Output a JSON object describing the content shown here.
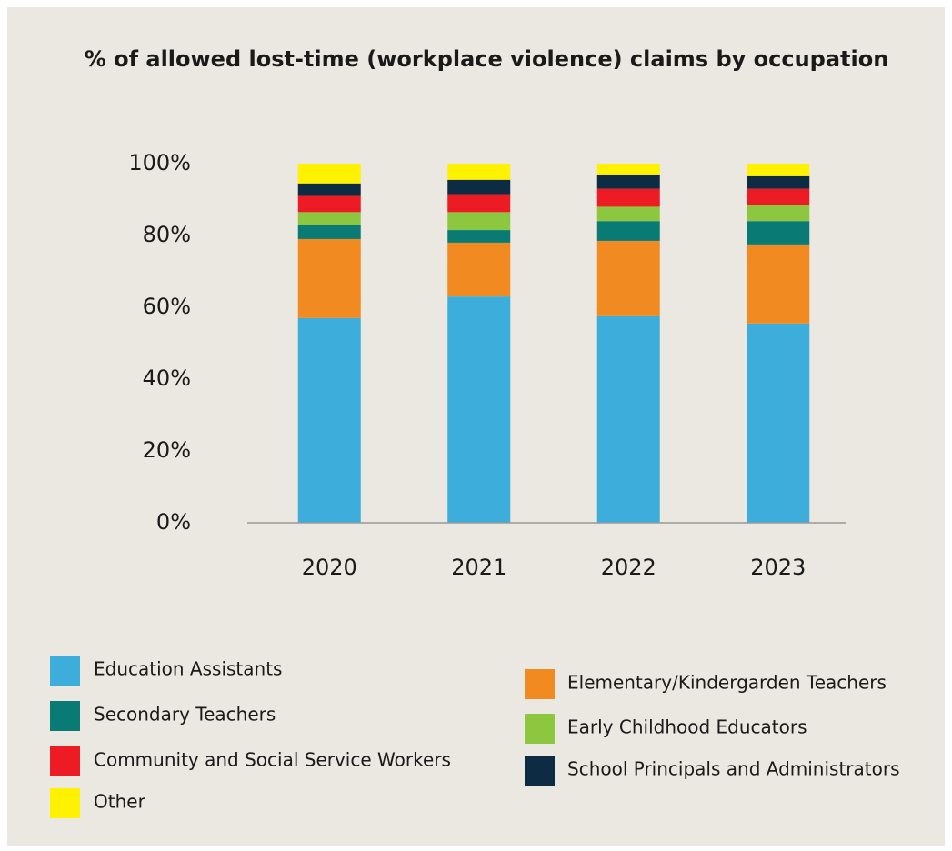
{
  "chart_data": {
    "type": "stacked_bar",
    "title": "% of allowed lost-time (workplace violence) claims by occupation",
    "categories": [
      "2020",
      "2021",
      "2022",
      "2023"
    ],
    "series": [
      {
        "name": "Education Assistants",
        "color": "#3daedb",
        "values": [
          57,
          63,
          57.5,
          55.5
        ]
      },
      {
        "name": "Elementary/Kindergarden Teachers",
        "color": "#f18a21",
        "values": [
          22,
          15,
          21,
          22
        ]
      },
      {
        "name": "Secondary Teachers",
        "color": "#0a7a74",
        "values": [
          4,
          3.5,
          5.5,
          6.5
        ]
      },
      {
        "name": "Early Childhood Educators",
        "color": "#8dc63f",
        "values": [
          3.5,
          5,
          4,
          4.5
        ]
      },
      {
        "name": "Community and Social Service Workers",
        "color": "#ed1c24",
        "values": [
          4.5,
          5,
          5,
          4.5
        ]
      },
      {
        "name": "School Principals and Administrators",
        "color": "#0d2b42",
        "values": [
          3.5,
          4,
          4,
          3.5
        ]
      },
      {
        "name": "Other",
        "color": "#fff200",
        "values": [
          5.5,
          4.5,
          3,
          3.5
        ]
      }
    ],
    "ylim": [
      0,
      100
    ],
    "yticks": [
      {
        "value": 0,
        "label": "0%"
      },
      {
        "value": 20,
        "label": "20%"
      },
      {
        "value": 40,
        "label": "40%"
      },
      {
        "value": 60,
        "label": "60%"
      },
      {
        "value": 80,
        "label": "80%"
      },
      {
        "value": 100,
        "label": "100%"
      }
    ],
    "grid": false
  }
}
